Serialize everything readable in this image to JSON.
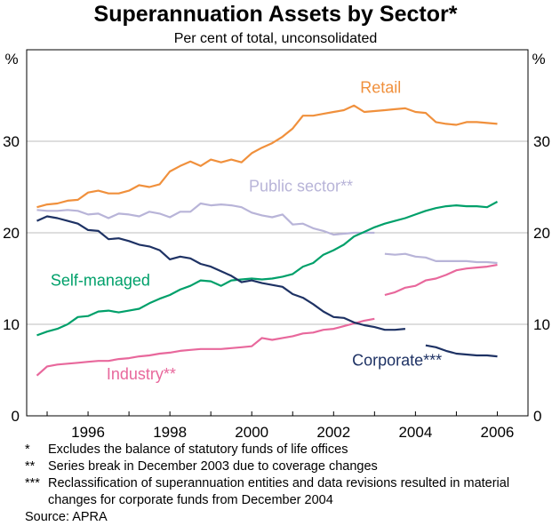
{
  "chart_data": {
    "type": "line",
    "title": "Superannuation Assets by Sector*",
    "subtitle": "Per cent of total, unconsolidated",
    "ylabel_left": "%",
    "ylabel_right": "%",
    "ylim": [
      0,
      40
    ],
    "yticks": [
      0,
      10,
      20,
      30
    ],
    "xlim": [
      1994.5,
      2006.75
    ],
    "xticks": [
      1996,
      1998,
      2000,
      2002,
      2004,
      2006
    ],
    "xtick_labels": [
      "1996",
      "1998",
      "2000",
      "2002",
      "2004",
      "2006"
    ],
    "grid": true,
    "series": [
      {
        "name": "Retail",
        "label": "Retail",
        "color": "#f0903c",
        "segments": [
          {
            "x": [
              1994.75,
              1995,
              1995.25,
              1995.5,
              1995.75,
              1996,
              1996.25,
              1996.5,
              1996.75,
              1997,
              1997.25,
              1997.5,
              1997.75,
              1998,
              1998.25,
              1998.5,
              1998.75,
              1999,
              1999.25,
              1999.5,
              1999.75,
              2000,
              2000.25,
              2000.5,
              2000.75,
              2001,
              2001.25,
              2001.5,
              2001.75,
              2002,
              2002.25,
              2002.5,
              2002.75,
              2003,
              2003.25,
              2003.5,
              2003.75,
              2004,
              2004.25,
              2004.5,
              2004.75,
              2005,
              2005.25,
              2005.5,
              2005.75,
              2006
            ],
            "y": [
              22.8,
              23.1,
              23.2,
              23.5,
              23.6,
              24.4,
              24.6,
              24.3,
              24.3,
              24.6,
              25.2,
              25.0,
              25.3,
              26.7,
              27.3,
              27.8,
              27.3,
              28.0,
              27.7,
              28.0,
              27.7,
              28.7,
              29.3,
              29.8,
              30.5,
              31.4,
              32.8,
              32.8,
              33.0,
              33.2,
              33.4,
              33.9,
              33.2,
              33.3,
              33.4,
              33.5,
              33.6,
              33.2,
              33.1,
              32.1,
              31.9,
              31.8,
              32.1,
              32.1,
              32.0,
              31.9
            ]
          }
        ]
      },
      {
        "name": "Public sector**",
        "label": "Public sector**",
        "color": "#b8b4d8",
        "segments": [
          {
            "x": [
              1994.75,
              1995,
              1995.25,
              1995.5,
              1995.75,
              1996,
              1996.25,
              1996.5,
              1996.75,
              1997,
              1997.25,
              1997.5,
              1997.75,
              1998,
              1998.25,
              1998.5,
              1998.75,
              1999,
              1999.25,
              1999.5,
              1999.75,
              2000,
              2000.25,
              2000.5,
              2000.75,
              2001,
              2001.25,
              2001.5,
              2001.75,
              2002,
              2002.25,
              2002.5,
              2002.75,
              2003
            ],
            "y": [
              22.5,
              22.4,
              22.4,
              22.5,
              22.4,
              22.0,
              22.1,
              21.6,
              22.1,
              22.0,
              21.8,
              22.3,
              22.1,
              21.7,
              22.3,
              22.3,
              23.2,
              23.0,
              23.1,
              23.0,
              22.8,
              22.2,
              21.9,
              21.7,
              22.0,
              20.9,
              21.0,
              20.5,
              20.2,
              19.8,
              19.9,
              20.0,
              20.0,
              20.0
            ]
          },
          {
            "x": [
              2003.25,
              2003.5,
              2003.75,
              2004,
              2004.25,
              2004.5,
              2004.75,
              2005,
              2005.25,
              2005.5,
              2005.75,
              2006
            ],
            "y": [
              17.7,
              17.6,
              17.7,
              17.4,
              17.3,
              16.9,
              16.9,
              16.9,
              16.9,
              16.8,
              16.8,
              16.7
            ]
          }
        ]
      },
      {
        "name": "Self-managed",
        "label": "Self-managed",
        "color": "#00a06a",
        "segments": [
          {
            "x": [
              1994.75,
              1995,
              1995.25,
              1995.5,
              1995.75,
              1996,
              1996.25,
              1996.5,
              1996.75,
              1997,
              1997.25,
              1997.5,
              1997.75,
              1998,
              1998.25,
              1998.5,
              1998.75,
              1999,
              1999.25,
              1999.5,
              1999.75,
              2000,
              2000.25,
              2000.5,
              2000.75,
              2001,
              2001.25,
              2001.5,
              2001.75,
              2002,
              2002.25,
              2002.5,
              2002.75,
              2003,
              2003.25,
              2003.5,
              2003.75,
              2004,
              2004.25,
              2004.5,
              2004.75,
              2005,
              2005.25,
              2005.5,
              2005.75,
              2006
            ],
            "y": [
              8.8,
              9.2,
              9.5,
              10.0,
              10.8,
              10.9,
              11.4,
              11.5,
              11.3,
              11.5,
              11.7,
              12.3,
              12.8,
              13.2,
              13.8,
              14.2,
              14.8,
              14.7,
              14.2,
              14.8,
              14.9,
              15.0,
              14.9,
              15.0,
              15.2,
              15.5,
              16.3,
              16.7,
              17.6,
              18.1,
              18.7,
              19.6,
              20.1,
              20.6,
              21.0,
              21.3,
              21.6,
              22.0,
              22.4,
              22.7,
              22.9,
              23.0,
              22.9,
              22.9,
              22.8,
              23.4
            ]
          }
        ]
      },
      {
        "name": "Industry**",
        "label": "Industry**",
        "color": "#e8689c",
        "segments": [
          {
            "x": [
              1994.75,
              1995,
              1995.25,
              1995.5,
              1995.75,
              1996,
              1996.25,
              1996.5,
              1996.75,
              1997,
              1997.25,
              1997.5,
              1997.75,
              1998,
              1998.25,
              1998.5,
              1998.75,
              1999,
              1999.25,
              1999.5,
              1999.75,
              2000,
              2000.25,
              2000.5,
              2000.75,
              2001,
              2001.25,
              2001.5,
              2001.75,
              2002,
              2002.25,
              2002.5,
              2002.75,
              2003
            ],
            "y": [
              4.4,
              5.4,
              5.6,
              5.7,
              5.8,
              5.9,
              6.0,
              6.0,
              6.2,
              6.3,
              6.5,
              6.6,
              6.8,
              6.9,
              7.1,
              7.2,
              7.3,
              7.3,
              7.3,
              7.4,
              7.5,
              7.6,
              8.5,
              8.3,
              8.5,
              8.7,
              9.0,
              9.1,
              9.4,
              9.5,
              9.8,
              10.1,
              10.4,
              10.6
            ]
          },
          {
            "x": [
              2003.25,
              2003.5,
              2003.75,
              2004,
              2004.25,
              2004.5,
              2004.75,
              2005,
              2005.25,
              2005.5,
              2005.75,
              2006
            ],
            "y": [
              13.2,
              13.5,
              14.0,
              14.2,
              14.8,
              15.0,
              15.4,
              15.9,
              16.1,
              16.2,
              16.3,
              16.5
            ]
          }
        ]
      },
      {
        "name": "Corporate***",
        "label": "Corporate***",
        "color": "#1e3264",
        "segments": [
          {
            "x": [
              1994.75,
              1995,
              1995.25,
              1995.5,
              1995.75,
              1996,
              1996.25,
              1996.5,
              1996.75,
              1997,
              1997.25,
              1997.5,
              1997.75,
              1998,
              1998.25,
              1998.5,
              1998.75,
              1999,
              1999.25,
              1999.5,
              1999.75,
              2000,
              2000.25,
              2000.5,
              2000.75,
              2001,
              2001.25,
              2001.5,
              2001.75,
              2002,
              2002.25,
              2002.5,
              2002.75,
              2003,
              2003.25,
              2003.5,
              2003.75
            ],
            "y": [
              21.3,
              21.8,
              21.6,
              21.3,
              21.0,
              20.3,
              20.2,
              19.3,
              19.4,
              19.1,
              18.7,
              18.5,
              18.1,
              17.1,
              17.4,
              17.2,
              16.6,
              16.3,
              15.8,
              15.3,
              14.6,
              14.8,
              14.5,
              14.3,
              14.1,
              13.3,
              12.9,
              12.2,
              11.4,
              10.8,
              10.7,
              10.2,
              9.9,
              9.7,
              9.4,
              9.4,
              9.5
            ]
          },
          {
            "x": [
              2004.25,
              2004.5,
              2004.75,
              2005,
              2005.25,
              2005.5,
              2005.75,
              2006
            ],
            "y": [
              7.7,
              7.5,
              7.1,
              6.8,
              6.7,
              6.6,
              6.6,
              6.5
            ]
          }
        ]
      }
    ],
    "notes": [
      {
        "mark": "*",
        "text": "Excludes the balance of statutory funds of life offices"
      },
      {
        "mark": "**",
        "text": "Series break in December 2003 due to coverage changes"
      },
      {
        "mark": "***",
        "text": "Reclassification of superannuation entities and data revisions resulted in material changes for corporate funds from December 2004"
      }
    ],
    "source": "Source: APRA"
  }
}
